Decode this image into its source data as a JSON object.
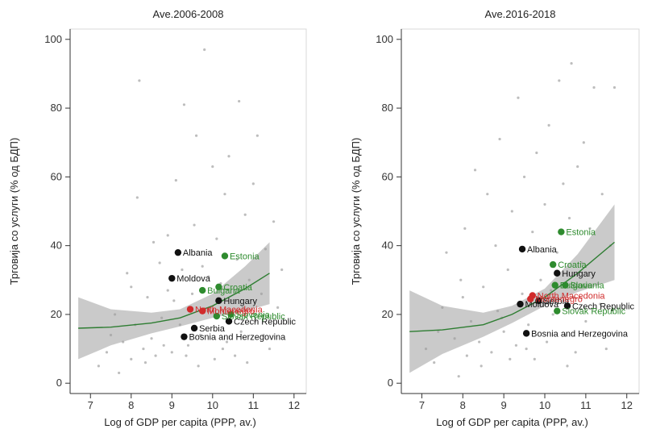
{
  "chart_data": [
    {
      "type": "scatter",
      "title": "Ave.2006-2008",
      "xlabel": "Log of GDP per capita (PPP, av.)",
      "ylabel": "Трговија со услуги (% од БДП)",
      "xlim": [
        6.5,
        12.3
      ],
      "ylim": [
        -3,
        103
      ],
      "xticks": [
        "7",
        "8",
        "9",
        "10",
        "11",
        "12"
      ],
      "xtick_values": [
        7,
        8,
        9,
        10,
        11,
        12
      ],
      "yticks": [
        "0",
        "20",
        "40",
        "60",
        "80",
        "100"
      ],
      "ytick_values": [
        0,
        20,
        40,
        60,
        80,
        100
      ],
      "colors": {
        "black": "#111111",
        "green": "#2e8b2e",
        "red": "#d12b2b",
        "background_points": "#bdbdbd",
        "fit_line": "#2e7d32",
        "ci_band": "#9e9e9e"
      },
      "fit": {
        "x": [
          6.7,
          7.5,
          8.5,
          9.2,
          10.0,
          10.8,
          11.4
        ],
        "y": [
          16,
          16.3,
          17.5,
          19,
          22.5,
          27.5,
          32
        ],
        "ci_low": [
          7,
          11,
          14.5,
          16.5,
          19,
          21,
          23
        ],
        "ci_high": [
          25,
          21.5,
          20.5,
          21.5,
          26,
          34,
          41
        ]
      },
      "labeled_points": [
        {
          "label": "Albania",
          "x": 9.15,
          "y": 38,
          "color": "black"
        },
        {
          "label": "Moldova",
          "x": 9.0,
          "y": 30.5,
          "color": "black"
        },
        {
          "label": "Hungary",
          "x": 10.15,
          "y": 24,
          "color": "black"
        },
        {
          "label": "Czech Republic",
          "x": 10.4,
          "y": 18,
          "color": "black"
        },
        {
          "label": "Serbia",
          "x": 9.55,
          "y": 16,
          "color": "black"
        },
        {
          "label": "Bosnia and Herzegovina",
          "x": 9.3,
          "y": 13.5,
          "color": "black"
        },
        {
          "label": "Estonia",
          "x": 10.3,
          "y": 37,
          "color": "green"
        },
        {
          "label": "Croatia",
          "x": 10.15,
          "y": 28,
          "color": "green"
        },
        {
          "label": "Bulgaria",
          "x": 9.75,
          "y": 27,
          "color": "green"
        },
        {
          "label": "Slovenia",
          "x": 10.45,
          "y": 20,
          "color": "green"
        },
        {
          "label": "Slovak Republic",
          "x": 10.1,
          "y": 19.5,
          "color": "green"
        },
        {
          "label": "North Macedonia",
          "x": 9.45,
          "y": 21.5,
          "color": "red"
        },
        {
          "label": "Montenegro",
          "x": 9.75,
          "y": 21,
          "color": "red"
        }
      ],
      "background_points": [
        [
          7.2,
          5
        ],
        [
          7.4,
          9
        ],
        [
          7.6,
          20
        ],
        [
          7.8,
          12
        ],
        [
          7.9,
          32
        ],
        [
          8.0,
          7
        ],
        [
          8.1,
          17
        ],
        [
          8.15,
          54
        ],
        [
          8.2,
          88
        ],
        [
          8.3,
          10
        ],
        [
          8.4,
          25
        ],
        [
          8.5,
          13
        ],
        [
          8.55,
          41
        ],
        [
          8.6,
          8
        ],
        [
          8.7,
          35
        ],
        [
          8.75,
          19
        ],
        [
          8.8,
          11
        ],
        [
          8.9,
          43
        ],
        [
          9.0,
          9
        ],
        [
          9.05,
          24
        ],
        [
          9.1,
          59
        ],
        [
          9.2,
          17
        ],
        [
          9.25,
          33
        ],
        [
          9.3,
          81
        ],
        [
          9.4,
          11
        ],
        [
          9.5,
          26
        ],
        [
          9.55,
          46
        ],
        [
          9.6,
          72
        ],
        [
          9.7,
          14
        ],
        [
          9.75,
          34
        ],
        [
          9.8,
          97
        ],
        [
          9.9,
          21
        ],
        [
          10.0,
          63
        ],
        [
          10.05,
          7
        ],
        [
          10.1,
          42
        ],
        [
          10.2,
          29
        ],
        [
          10.3,
          55
        ],
        [
          10.35,
          12
        ],
        [
          10.4,
          66
        ],
        [
          10.5,
          24
        ],
        [
          10.6,
          36
        ],
        [
          10.65,
          82
        ],
        [
          10.7,
          15
        ],
        [
          10.8,
          49
        ],
        [
          10.85,
          6
        ],
        [
          10.9,
          30
        ],
        [
          11.0,
          58
        ],
        [
          11.05,
          18
        ],
        [
          11.1,
          72
        ],
        [
          11.2,
          26
        ],
        [
          11.3,
          39
        ],
        [
          11.4,
          10
        ],
        [
          11.5,
          47
        ],
        [
          11.6,
          22
        ],
        [
          7.5,
          14
        ],
        [
          8.0,
          28
        ],
        [
          8.35,
          6
        ],
        [
          8.9,
          27
        ],
        [
          9.35,
          8
        ],
        [
          9.9,
          31
        ],
        [
          10.25,
          10
        ],
        [
          10.75,
          22
        ],
        [
          11.25,
          14
        ],
        [
          11.7,
          33
        ],
        [
          7.7,
          3
        ],
        [
          9.65,
          5
        ],
        [
          10.55,
          8
        ]
      ]
    },
    {
      "type": "scatter",
      "title": "Ave.2016-2018",
      "xlabel": "Log of GDP per capita (PPP, av.)",
      "ylabel": "Трговија со услуги (% од БДП)",
      "xlim": [
        6.5,
        12.3
      ],
      "ylim": [
        -3,
        103
      ],
      "xticks": [
        "7",
        "8",
        "9",
        "10",
        "11",
        "12"
      ],
      "xtick_values": [
        7,
        8,
        9,
        10,
        11,
        12
      ],
      "yticks": [
        "0",
        "20",
        "40",
        "60",
        "80",
        "100"
      ],
      "ytick_values": [
        0,
        20,
        40,
        60,
        80,
        100
      ],
      "colors": {
        "black": "#111111",
        "green": "#2e8b2e",
        "red": "#d12b2b",
        "background_points": "#bdbdbd",
        "fit_line": "#2e7d32",
        "ci_band": "#9e9e9e"
      },
      "fit": {
        "x": [
          6.7,
          7.5,
          8.5,
          9.2,
          10.0,
          10.8,
          11.7
        ],
        "y": [
          15,
          15.5,
          17,
          20,
          25,
          32,
          41
        ],
        "ci_low": [
          3,
          8.5,
          13.5,
          17.5,
          22.5,
          26.5,
          30
        ],
        "ci_high": [
          27,
          22.5,
          20.5,
          22.5,
          27.5,
          37.5,
          52
        ]
      },
      "labeled_points": [
        {
          "label": "Albania",
          "x": 9.45,
          "y": 39,
          "color": "black"
        },
        {
          "label": "Hungary",
          "x": 10.3,
          "y": 32,
          "color": "black"
        },
        {
          "label": "Czech Republic",
          "x": 10.55,
          "y": 22.5,
          "color": "black"
        },
        {
          "label": "Moldova",
          "x": 9.4,
          "y": 23,
          "color": "black"
        },
        {
          "label": "Bosnia and Herzegovina",
          "x": 9.55,
          "y": 14.5,
          "color": "black"
        },
        {
          "label": "Estonia",
          "x": 10.4,
          "y": 44,
          "color": "green"
        },
        {
          "label": "Croatia",
          "x": 10.2,
          "y": 34.5,
          "color": "green"
        },
        {
          "label": "Bulgaria",
          "x": 10.25,
          "y": 28.5,
          "color": "green"
        },
        {
          "label": "Slovenia",
          "x": 10.5,
          "y": 28.5,
          "color": "green"
        },
        {
          "label": "Slovak Republic",
          "x": 10.3,
          "y": 21,
          "color": "green"
        },
        {
          "label": "Serbia",
          "x": 9.85,
          "y": 24,
          "color": "black"
        },
        {
          "label": "North Macedonia",
          "x": 9.7,
          "y": 25.5,
          "color": "red"
        },
        {
          "label": "Montenegro",
          "x": 9.65,
          "y": 24.5,
          "color": "red"
        }
      ],
      "background_points": [
        [
          7.1,
          10
        ],
        [
          7.3,
          6
        ],
        [
          7.5,
          22
        ],
        [
          7.6,
          38
        ],
        [
          7.8,
          13
        ],
        [
          7.95,
          30
        ],
        [
          8.05,
          45
        ],
        [
          8.1,
          8
        ],
        [
          8.2,
          18
        ],
        [
          8.3,
          62
        ],
        [
          8.4,
          12
        ],
        [
          8.5,
          28
        ],
        [
          8.6,
          55
        ],
        [
          8.7,
          9
        ],
        [
          8.8,
          40
        ],
        [
          8.85,
          21
        ],
        [
          8.9,
          71
        ],
        [
          9.0,
          15
        ],
        [
          9.1,
          33
        ],
        [
          9.2,
          50
        ],
        [
          9.3,
          11
        ],
        [
          9.35,
          83
        ],
        [
          9.45,
          26
        ],
        [
          9.5,
          60
        ],
        [
          9.6,
          17
        ],
        [
          9.7,
          44
        ],
        [
          9.75,
          7
        ],
        [
          9.8,
          67
        ],
        [
          9.9,
          30
        ],
        [
          10.0,
          52
        ],
        [
          10.05,
          12
        ],
        [
          10.1,
          75
        ],
        [
          10.2,
          20
        ],
        [
          10.3,
          38
        ],
        [
          10.35,
          88
        ],
        [
          10.45,
          58
        ],
        [
          10.5,
          14
        ],
        [
          10.6,
          48
        ],
        [
          10.65,
          93
        ],
        [
          10.7,
          25
        ],
        [
          10.8,
          63
        ],
        [
          10.9,
          35
        ],
        [
          10.95,
          70
        ],
        [
          11.0,
          18
        ],
        [
          11.1,
          45
        ],
        [
          11.2,
          86
        ],
        [
          11.3,
          29
        ],
        [
          11.4,
          55
        ],
        [
          11.5,
          10
        ],
        [
          11.6,
          40
        ],
        [
          11.7,
          86
        ],
        [
          7.4,
          15
        ],
        [
          8.0,
          25
        ],
        [
          8.45,
          5
        ],
        [
          8.95,
          19
        ],
        [
          9.55,
          10
        ],
        [
          10.15,
          27
        ],
        [
          10.75,
          9
        ],
        [
          11.35,
          23
        ],
        [
          7.9,
          2
        ],
        [
          9.15,
          7
        ],
        [
          10.55,
          5
        ]
      ]
    }
  ]
}
